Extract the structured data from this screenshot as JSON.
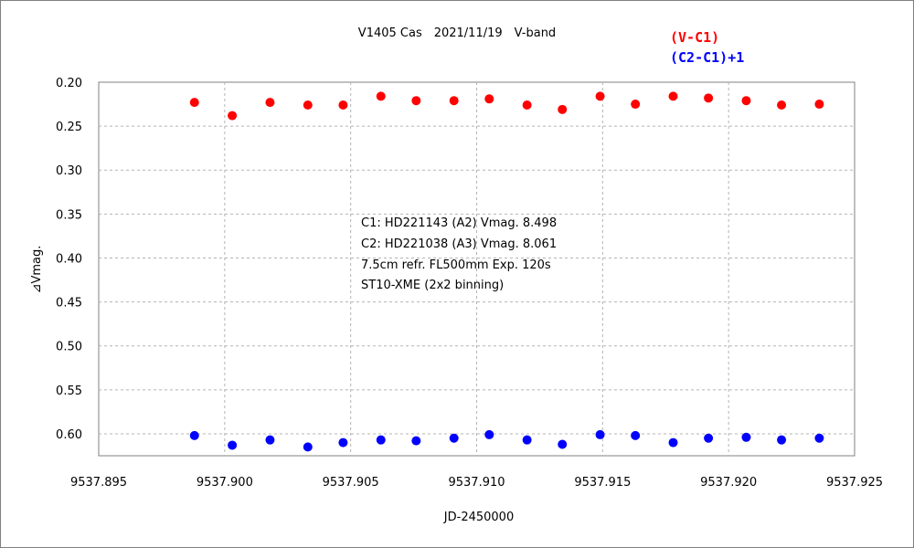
{
  "chart_data": {
    "type": "scatter",
    "title": "V1405 Cas　2021/11/19　V-band",
    "xlabel": "JD-2450000",
    "ylabel": "⊿Vmag.",
    "xlim": [
      9537.895,
      9537.925
    ],
    "ylim": [
      0.2,
      0.625
    ],
    "y_inverted": true,
    "grid": true,
    "legend_position": "top-right",
    "x_ticks": [
      "9537.895",
      "9537.900",
      "9537.905",
      "9537.910",
      "9537.915",
      "9537.920",
      "9537.925"
    ],
    "y_ticks": [
      "0.20",
      "0.25",
      "0.30",
      "0.35",
      "0.40",
      "0.45",
      "0.50",
      "0.55",
      "0.60"
    ],
    "annotations": [
      "C1: HD221143 (A2) Vmag. 8.498",
      "C2: HD221038 (A3) Vmag. 8.061",
      "7.5cm refr. FL500mm Exp. 120s",
      "ST10-XME (2x2 binning)"
    ],
    "series": [
      {
        "name": "(V-C1)",
        "color": "#ff0000",
        "x": [
          9537.8988,
          9537.9003,
          9537.9018,
          9537.9033,
          9537.9047,
          9537.9062,
          9537.9076,
          9537.9091,
          9537.9105,
          9537.912,
          9537.9134,
          9537.9149,
          9537.9163,
          9537.9178,
          9537.9192,
          9537.9207,
          9537.9221,
          9537.9236
        ],
        "y": [
          0.223,
          0.238,
          0.223,
          0.226,
          0.226,
          0.216,
          0.221,
          0.221,
          0.219,
          0.226,
          0.231,
          0.216,
          0.225,
          0.216,
          0.218,
          0.221,
          0.226,
          0.225
        ]
      },
      {
        "name": "(C2-C1)+1",
        "color": "#0000ff",
        "x": [
          9537.8988,
          9537.9003,
          9537.9018,
          9537.9033,
          9537.9047,
          9537.9062,
          9537.9076,
          9537.9091,
          9537.9105,
          9537.912,
          9537.9134,
          9537.9149,
          9537.9163,
          9537.9178,
          9537.9192,
          9537.9207,
          9537.9221,
          9537.9236
        ],
        "y": [
          0.602,
          0.613,
          0.607,
          0.615,
          0.61,
          0.607,
          0.608,
          0.605,
          0.601,
          0.607,
          0.612,
          0.601,
          0.602,
          0.61,
          0.605,
          0.604,
          0.607,
          0.605
        ]
      }
    ]
  }
}
